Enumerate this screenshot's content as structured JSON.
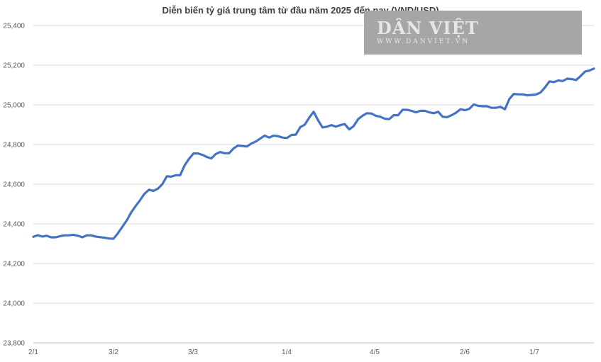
{
  "chart_data": {
    "type": "line",
    "title": "Diễn biến tỷ giá trung tâm từ đầu năm 2025 đến nay (VND/USD)",
    "xlabel": "",
    "ylabel": "",
    "ylim": [
      23800,
      25400
    ],
    "y_ticks": [
      "23,800",
      "24,000",
      "24,200",
      "24,400",
      "24,600",
      "24,800",
      "25,000",
      "25,200",
      "25,400"
    ],
    "y_tick_values": [
      23800,
      24000,
      24200,
      24400,
      24600,
      24800,
      25000,
      25200,
      25400
    ],
    "x_ticks": [
      "2/1",
      "3/2",
      "3/3",
      "1/4",
      "4/5",
      "2/6",
      "1/7"
    ],
    "grid": "horizontal",
    "line_color": "#4472c4",
    "series": [
      {
        "values": [
          24335,
          24343,
          24336,
          24340,
          24332,
          24332,
          24338,
          24342,
          24342,
          24345,
          24340,
          24332,
          24342,
          24342,
          24336,
          24333,
          24330,
          24326,
          24325,
          24352,
          24385,
          24418,
          24458,
          24490,
          24520,
          24552,
          24572,
          24566,
          24578,
          24600,
          24640,
          24638,
          24645,
          24645,
          24695,
          24728,
          24755,
          24755,
          24748,
          24737,
          24730,
          24752,
          24762,
          24756,
          24756,
          24780,
          24795,
          24792,
          24790,
          24805,
          24815,
          24830,
          24845,
          24835,
          24845,
          24842,
          24835,
          24833,
          24848,
          24850,
          24888,
          24900,
          24935,
          24965,
          24922,
          24886,
          24890,
          24898,
          24890,
          24898,
          24903,
          24876,
          24893,
          24928,
          24945,
          24958,
          24956,
          24945,
          24940,
          24930,
          24928,
          24948,
          24948,
          24975,
          24975,
          24970,
          24962,
          24970,
          24970,
          24962,
          24958,
          24965,
          24940,
          24938,
          24948,
          24960,
          24978,
          24973,
          24980,
          25002,
          24995,
          24993,
          24993,
          24985,
          24985,
          24990,
          24978,
          25030,
          25055,
          25053,
          25053,
          25048,
          25050,
          25052,
          25062,
          25088,
          25118,
          25115,
          25123,
          25120,
          25132,
          25130,
          25125,
          25145,
          25168,
          25173,
          25183
        ]
      }
    ]
  },
  "watermark": {
    "brand": "DÂN VIỆT",
    "url": "WWW.DANVIET.VN"
  }
}
